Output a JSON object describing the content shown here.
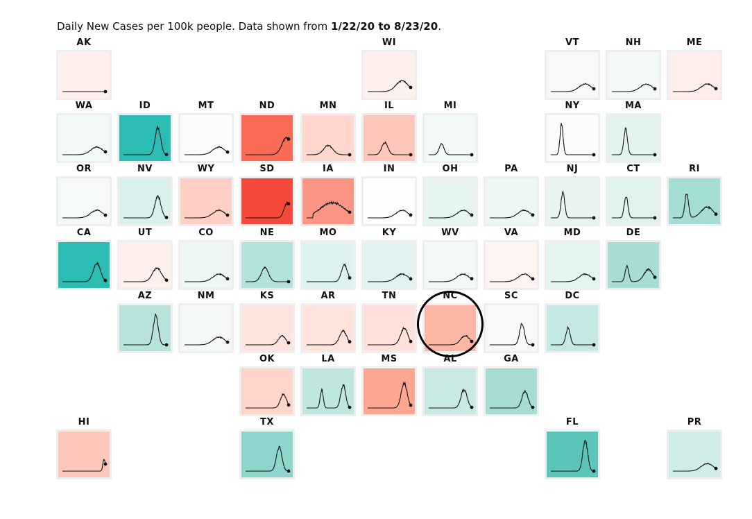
{
  "header": {
    "prefix": "Daily New Cases per 100k people. Data shown from ",
    "start": "1/22/20",
    "middle": " to ",
    "end": "8/23/20",
    "suffix": "."
  },
  "highlighted": "NC",
  "chart_data": {
    "type": "small-multiples-line",
    "description": "Daily new cases per 100k people by state, tile grid map",
    "x_range": [
      "1/22/20",
      "8/23/20"
    ],
    "tiles": [
      {
        "state": "AK",
        "row": 0,
        "col": 0,
        "color": "#fff0ec",
        "values": [
          0,
          0,
          0,
          0,
          0,
          0,
          0,
          0,
          0,
          0,
          0,
          0,
          0,
          0,
          0,
          0,
          0,
          0,
          0,
          0,
          0,
          0,
          0,
          0,
          0,
          0,
          0,
          0,
          0,
          0,
          0,
          0,
          0,
          0,
          0,
          0,
          0,
          0,
          0,
          0,
          0,
          0,
          0,
          0,
          0,
          0,
          0,
          0,
          0,
          0,
          0,
          0,
          0,
          0,
          0,
          0,
          0,
          0,
          0,
          0,
          0,
          0,
          0,
          0,
          0,
          0,
          0,
          0,
          0,
          0,
          0,
          0,
          0,
          0,
          0,
          0,
          0,
          0,
          0,
          0,
          0,
          0,
          0,
          0,
          0,
          0,
          0,
          0,
          0,
          0,
          0,
          0,
          0,
          0,
          0,
          0,
          0,
          0,
          0,
          0
        ]
      },
      {
        "state": "WI",
        "row": 0,
        "col": 5,
        "color": "#fff0ee",
        "values": []
      },
      {
        "state": "VT",
        "row": 0,
        "col": 8,
        "color": "#f6f8f9",
        "values": []
      },
      {
        "state": "NH",
        "row": 0,
        "col": 9,
        "color": "#f3f9f9",
        "values": []
      },
      {
        "state": "ME",
        "row": 0,
        "col": 10,
        "color": "#ffeeea",
        "values": []
      },
      {
        "state": "WA",
        "row": 1,
        "col": 0,
        "color": "#f3f9f8",
        "values": []
      },
      {
        "state": "ID",
        "row": 1,
        "col": 1,
        "color": "#2bbcb3",
        "values": []
      },
      {
        "state": "MT",
        "row": 1,
        "col": 2,
        "color": "#fbfbfb",
        "values": []
      },
      {
        "state": "ND",
        "row": 1,
        "col": 3,
        "color": "#fa6a55",
        "values": []
      },
      {
        "state": "MN",
        "row": 1,
        "col": 4,
        "color": "#ffd7cf",
        "values": []
      },
      {
        "state": "IL",
        "row": 1,
        "col": 5,
        "color": "#ffc6ba",
        "values": []
      },
      {
        "state": "MI",
        "row": 1,
        "col": 6,
        "color": "#f3f9f8",
        "values": []
      },
      {
        "state": "NY",
        "row": 1,
        "col": 8,
        "color": "#fbfbfb",
        "values": []
      },
      {
        "state": "MA",
        "row": 1,
        "col": 9,
        "color": "#e3f4f0",
        "values": []
      },
      {
        "state": "OR",
        "row": 2,
        "col": 0,
        "color": "#f5f9f8",
        "values": []
      },
      {
        "state": "NV",
        "row": 2,
        "col": 1,
        "color": "#d9f0ec",
        "values": []
      },
      {
        "state": "WY",
        "row": 2,
        "col": 2,
        "color": "#ffcfc5",
        "values": []
      },
      {
        "state": "SD",
        "row": 2,
        "col": 3,
        "color": "#f5493b",
        "values": []
      },
      {
        "state": "IA",
        "row": 2,
        "col": 4,
        "color": "#fc9684",
        "values": []
      },
      {
        "state": "IN",
        "row": 2,
        "col": 5,
        "color": "#fdfdfd",
        "values": []
      },
      {
        "state": "OH",
        "row": 2,
        "col": 6,
        "color": "#e6f4f2",
        "values": []
      },
      {
        "state": "PA",
        "row": 2,
        "col": 7,
        "color": "#edf7f5",
        "values": []
      },
      {
        "state": "NJ",
        "row": 2,
        "col": 8,
        "color": "#e7f4f2",
        "values": []
      },
      {
        "state": "CT",
        "row": 2,
        "col": 9,
        "color": "#dff2ee",
        "values": []
      },
      {
        "state": "RI",
        "row": 2,
        "col": 10,
        "color": "#a4dcd6",
        "values": []
      },
      {
        "state": "CA",
        "row": 3,
        "col": 0,
        "color": "#2bbcb3",
        "values": []
      },
      {
        "state": "UT",
        "row": 3,
        "col": 1,
        "color": "#fff0ee",
        "values": []
      },
      {
        "state": "CO",
        "row": 3,
        "col": 2,
        "color": "#eef7f5",
        "values": []
      },
      {
        "state": "NE",
        "row": 3,
        "col": 3,
        "color": "#b3e2dc",
        "values": []
      },
      {
        "state": "MO",
        "row": 3,
        "col": 4,
        "color": "#ddf2ee",
        "values": []
      },
      {
        "state": "KY",
        "row": 3,
        "col": 5,
        "color": "#e1f3f0",
        "values": []
      },
      {
        "state": "WV",
        "row": 3,
        "col": 6,
        "color": "#f3f9f8",
        "values": []
      },
      {
        "state": "VA",
        "row": 3,
        "col": 7,
        "color": "#fff4f2",
        "values": []
      },
      {
        "state": "MD",
        "row": 3,
        "col": 8,
        "color": "#e3f4f1",
        "values": []
      },
      {
        "state": "DE",
        "row": 3,
        "col": 9,
        "color": "#a8ddd5",
        "values": []
      },
      {
        "state": "AZ",
        "row": 4,
        "col": 1,
        "color": "#b7e3dc",
        "values": []
      },
      {
        "state": "NM",
        "row": 4,
        "col": 2,
        "color": "#f4f9f8",
        "values": []
      },
      {
        "state": "KS",
        "row": 4,
        "col": 3,
        "color": "#ffe3de",
        "values": []
      },
      {
        "state": "AR",
        "row": 4,
        "col": 4,
        "color": "#ffe3dd",
        "values": []
      },
      {
        "state": "TN",
        "row": 4,
        "col": 5,
        "color": "#ffe0da",
        "values": []
      },
      {
        "state": "NC",
        "row": 4,
        "col": 6,
        "color": "#ffb6a4",
        "values": []
      },
      {
        "state": "SC",
        "row": 4,
        "col": 7,
        "color": "#f6f9f8",
        "values": []
      },
      {
        "state": "DC",
        "row": 4,
        "col": 8,
        "color": "#c4e8e3",
        "values": []
      },
      {
        "state": "OK",
        "row": 5,
        "col": 3,
        "color": "#ffd5cb",
        "values": []
      },
      {
        "state": "LA",
        "row": 5,
        "col": 4,
        "color": "#bfe6df",
        "values": []
      },
      {
        "state": "MS",
        "row": 5,
        "col": 5,
        "color": "#fda792",
        "values": []
      },
      {
        "state": "AL",
        "row": 5,
        "col": 6,
        "color": "#c9eae4",
        "values": []
      },
      {
        "state": "GA",
        "row": 5,
        "col": 7,
        "color": "#a5ddd5",
        "values": []
      },
      {
        "state": "HI",
        "row": 6,
        "col": 0,
        "color": "#ffc7bb",
        "values": []
      },
      {
        "state": "TX",
        "row": 6,
        "col": 3,
        "color": "#8ed5cb",
        "values": []
      },
      {
        "state": "FL",
        "row": 6,
        "col": 8,
        "color": "#5cc5ba",
        "values": []
      },
      {
        "state": "PR",
        "row": 6,
        "col": 10,
        "color": "#d0ece8",
        "values": []
      }
    ]
  }
}
